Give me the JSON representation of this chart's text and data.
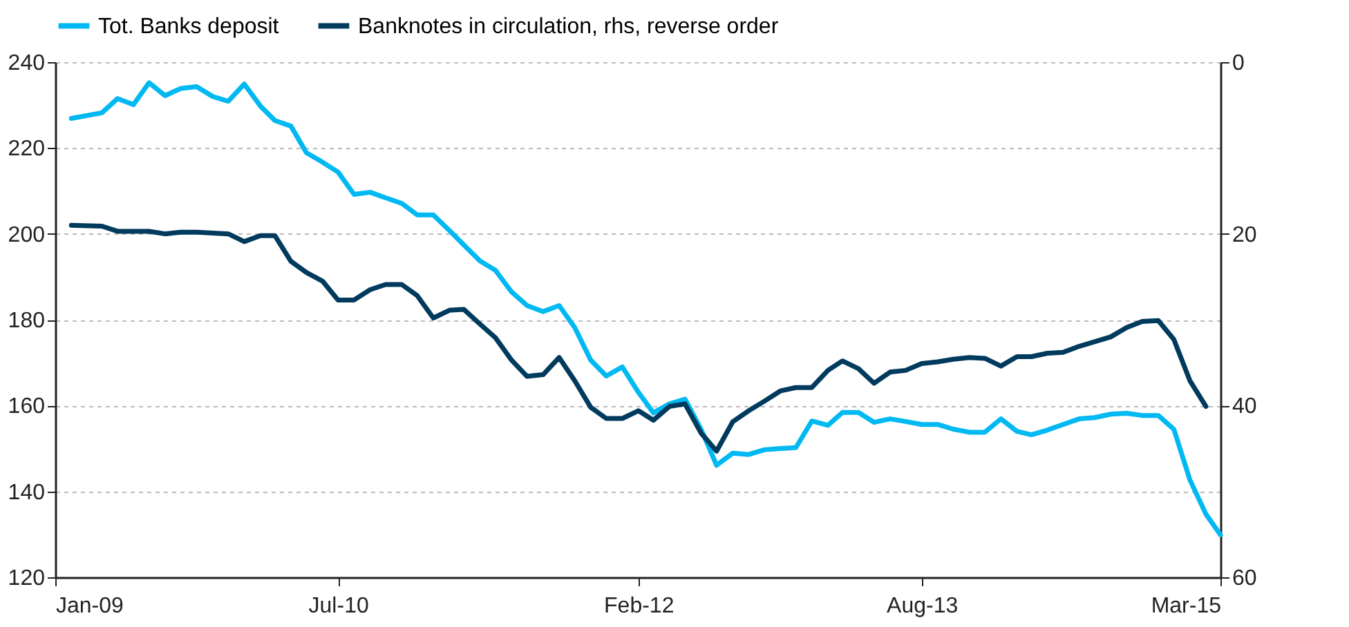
{
  "chart_data": {
    "type": "line",
    "xlim": [
      "2009-01",
      "2015-03"
    ],
    "xticks": [
      {
        "value": "2009-01",
        "label": "Jan-09"
      },
      {
        "value": "2010-07",
        "label": "Jul-10"
      },
      {
        "value": "2012-02",
        "label": "Feb-12"
      },
      {
        "value": "2013-08",
        "label": "Aug-13"
      },
      {
        "value": "2015-03",
        "label": "Mar-15"
      }
    ],
    "ylim": [
      120,
      240
    ],
    "yticks": [
      120,
      140,
      160,
      180,
      200,
      220,
      240
    ],
    "y2lim": [
      60,
      0
    ],
    "y2ticks": [
      0,
      20,
      40,
      60
    ],
    "grid": "y",
    "legend": "top",
    "series": [
      {
        "name": "Tot. Banks deposit",
        "color": "#00b9f2",
        "x": [
          "2009-02",
          "2009-04",
          "2009-05",
          "2009-06",
          "2009-07",
          "2009-08",
          "2009-09",
          "2009-10",
          "2009-11",
          "2009-12",
          "2010-01",
          "2010-02",
          "2010-03",
          "2010-04",
          "2010-05",
          "2010-06",
          "2010-07",
          "2010-08",
          "2010-09",
          "2010-10",
          "2010-11",
          "2010-12",
          "2011-01",
          "2011-02",
          "2011-03",
          "2011-04",
          "2011-05",
          "2011-06",
          "2011-07",
          "2011-08",
          "2011-09",
          "2011-10",
          "2011-11",
          "2011-12",
          "2012-01",
          "2012-02",
          "2012-03",
          "2012-04",
          "2012-05",
          "2012-06",
          "2012-07",
          "2012-08",
          "2012-09",
          "2012-10",
          "2012-11",
          "2012-12",
          "2013-01",
          "2013-02",
          "2013-03",
          "2013-04",
          "2013-05",
          "2013-06",
          "2013-07",
          "2013-08",
          "2013-09",
          "2013-10",
          "2013-11",
          "2013-12",
          "2014-01",
          "2014-02",
          "2014-03",
          "2014-04",
          "2014-05",
          "2014-06",
          "2014-07",
          "2014-08",
          "2014-09",
          "2014-10",
          "2014-11",
          "2014-12",
          "2015-01",
          "2015-02",
          "2015-03"
        ],
        "values": [
          226.9,
          228.2,
          231.5,
          230.1,
          235.2,
          232.2,
          233.9,
          234.3,
          232.0,
          230.9,
          234.9,
          229.8,
          226.4,
          225.1,
          218.9,
          216.7,
          214.4,
          209.2,
          209.7,
          208.4,
          207.1,
          204.4,
          204.4,
          200.8,
          197.4,
          193.7,
          191.5,
          186.5,
          183.3,
          181.9,
          183.3,
          178.2,
          170.6,
          166.9,
          169.0,
          163.1,
          158.3,
          160.4,
          161.5,
          154.5,
          146.1,
          148.9,
          148.6,
          149.7,
          150.0,
          150.2,
          156.4,
          155.4,
          158.4,
          158.4,
          156.1,
          156.9,
          156.3,
          155.6,
          155.6,
          154.5,
          153.8,
          153.8,
          156.9,
          154.0,
          153.2,
          154.3,
          155.6,
          156.9,
          157.2,
          158.0,
          158.2,
          157.7,
          157.7,
          154.5,
          142.7,
          134.7,
          129.9
        ]
      },
      {
        "name": "Banknotes in circulation, rhs, reverse order",
        "color": "#003a5d",
        "axis": "y2",
        "x": [
          "2009-02",
          "2009-04",
          "2009-05",
          "2009-07",
          "2009-08",
          "2009-09",
          "2009-10",
          "2009-11",
          "2009-12",
          "2010-01",
          "2010-02",
          "2010-03",
          "2010-04",
          "2010-05",
          "2010-06",
          "2010-07",
          "2010-08",
          "2010-09",
          "2010-10",
          "2010-11",
          "2010-12",
          "2011-01",
          "2011-02",
          "2011-03",
          "2011-04",
          "2011-05",
          "2011-06",
          "2011-07",
          "2011-08",
          "2011-09",
          "2011-10",
          "2011-11",
          "2011-12",
          "2012-01",
          "2012-02",
          "2012-03",
          "2012-04",
          "2012-05",
          "2012-06",
          "2012-07",
          "2012-08",
          "2012-09",
          "2012-10",
          "2012-11",
          "2012-12",
          "2013-01",
          "2013-02",
          "2013-03",
          "2013-04",
          "2013-05",
          "2013-06",
          "2013-07",
          "2013-08",
          "2013-09",
          "2013-10",
          "2013-11",
          "2013-12",
          "2014-01",
          "2014-02",
          "2014-03",
          "2014-04",
          "2014-05",
          "2014-06",
          "2014-08",
          "2014-09",
          "2014-10",
          "2014-11",
          "2014-12",
          "2015-01",
          "2015-02"
        ],
        "values": [
          19.0,
          19.1,
          19.7,
          19.7,
          20.0,
          19.8,
          19.8,
          19.9,
          20.0,
          20.9,
          20.2,
          20.2,
          23.2,
          24.5,
          25.5,
          27.7,
          27.7,
          26.5,
          25.9,
          25.9,
          27.2,
          29.8,
          28.9,
          28.8,
          30.5,
          32.1,
          34.7,
          36.6,
          36.4,
          34.4,
          37.1,
          40.2,
          41.5,
          41.5,
          40.6,
          41.7,
          40.1,
          39.8,
          43.2,
          45.3,
          41.9,
          40.6,
          39.5,
          38.3,
          37.9,
          37.9,
          35.9,
          34.8,
          35.7,
          37.4,
          36.1,
          35.9,
          35.1,
          34.9,
          34.6,
          34.4,
          34.5,
          35.4,
          34.3,
          34.3,
          33.9,
          33.8,
          33.1,
          32.0,
          30.9,
          30.2,
          30.1,
          32.3,
          37.1,
          40.1
        ]
      }
    ]
  }
}
